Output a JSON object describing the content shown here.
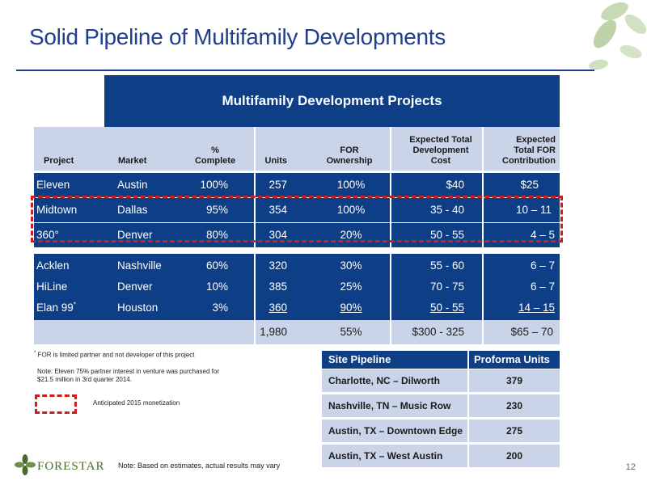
{
  "title": "Solid Pipeline of Multifamily Developments",
  "table_title": "Multifamily Development Projects",
  "columns": {
    "project": "Project",
    "market": "Market",
    "pct_line1": "%",
    "pct_line2": "Complete",
    "units": "Units",
    "own_line1": "FOR",
    "own_line2": "Ownership",
    "cost_line1": "Expected Total",
    "cost_line2": "Development",
    "cost_line3": "Cost",
    "contrib_line1": "Expected",
    "contrib_line2": "Total FOR",
    "contrib_line3": "Contribution"
  },
  "rows": [
    {
      "project": "Eleven",
      "market": "Austin",
      "pct": "100%",
      "units": "257",
      "own": "100%",
      "cost": "$40",
      "contrib": "$25"
    },
    {
      "project": "Midtown",
      "market": "Dallas",
      "pct": "95%",
      "units": "354",
      "own": "100%",
      "cost": "35 - 40",
      "contrib": "10 – 11"
    },
    {
      "project": "360°",
      "market": "Denver",
      "pct": "80%",
      "units": "304",
      "own": "20%",
      "cost": "50 - 55",
      "contrib": "4 – 5"
    },
    {
      "project": "Acklen",
      "market": "Nashville",
      "pct": "60%",
      "units": "320",
      "own": "30%",
      "cost": "55 - 60",
      "contrib": "6 – 7"
    },
    {
      "project": "HiLine",
      "market": "Denver",
      "pct": "10%",
      "units": "385",
      "own": "25%",
      "cost": "70 - 75",
      "contrib": "6 – 7"
    },
    {
      "project": "Elan 99",
      "project_sup": "*",
      "market": "Houston",
      "pct": "3%",
      "units": "360",
      "own": "90%",
      "cost": "50 - 55",
      "contrib": "14 – 15"
    }
  ],
  "totals": {
    "units": "1,980",
    "own": "55%",
    "cost": "$300 - 325",
    "contrib": "$65 – 70"
  },
  "notes": {
    "footnote_star": "*",
    "footnote_text": "FOR is limited partner and not developer of this project",
    "eleven_note": "Note: Eleven 75% partner interest in venture was purchased for $21.5 million in 3rd quarter 2014.",
    "legend_label": "Anticipated 2015 monetization"
  },
  "site_pipeline": {
    "header_site": "Site Pipeline",
    "header_units": "Proforma Units",
    "rows": [
      {
        "site": "Charlotte, NC – Dilworth",
        "units": "379"
      },
      {
        "site": "Nashville, TN – Music Row",
        "units": "230"
      },
      {
        "site": "Austin, TX – Downtown Edge",
        "units": "275"
      },
      {
        "site": "Austin, TX – West Austin",
        "units": "200"
      }
    ]
  },
  "footer": {
    "logo_text": "FORESTAR",
    "note": "Note: Based on estimates, actual results may vary",
    "page_number": "12"
  },
  "colors": {
    "navy": "#0E3E86",
    "light_blue": "#C9D4E8",
    "title_blue": "#1F3E8C",
    "dash_red": "#CC1F1F",
    "leaf_green": "#B9CFA6"
  }
}
